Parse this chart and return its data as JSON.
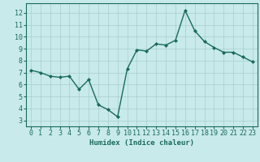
{
  "x": [
    0,
    1,
    2,
    3,
    4,
    5,
    6,
    7,
    8,
    9,
    10,
    11,
    12,
    13,
    14,
    15,
    16,
    17,
    18,
    19,
    20,
    21,
    22,
    23
  ],
  "y": [
    7.2,
    7.0,
    6.7,
    6.6,
    6.7,
    5.6,
    6.4,
    4.3,
    3.9,
    3.3,
    7.3,
    8.9,
    8.8,
    9.4,
    9.3,
    9.7,
    12.2,
    10.5,
    9.6,
    9.1,
    8.7,
    8.7,
    8.3,
    7.9
  ],
  "line_color": "#1a6b5a",
  "marker": "D",
  "marker_size": 2.0,
  "bg_color": "#c8eaea",
  "grid_color": "#a8cccc",
  "axis_color": "#1a6b5a",
  "xlabel": "Humidex (Indice chaleur)",
  "xlim": [
    -0.5,
    23.5
  ],
  "ylim": [
    2.5,
    12.8
  ],
  "yticks": [
    3,
    4,
    5,
    6,
    7,
    8,
    9,
    10,
    11,
    12
  ],
  "xticks": [
    0,
    1,
    2,
    3,
    4,
    5,
    6,
    7,
    8,
    9,
    10,
    11,
    12,
    13,
    14,
    15,
    16,
    17,
    18,
    19,
    20,
    21,
    22,
    23
  ],
  "xlabel_fontsize": 6.5,
  "tick_fontsize": 6.0,
  "line_width": 1.0
}
